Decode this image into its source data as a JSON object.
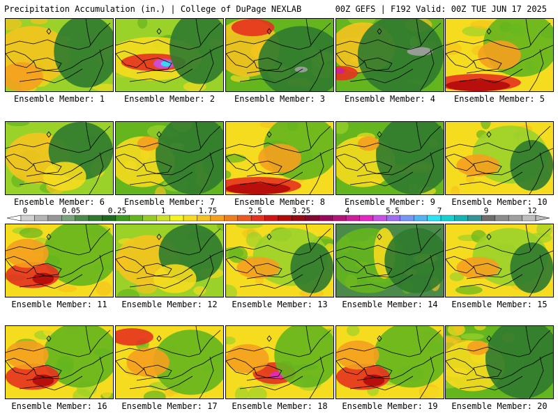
{
  "header": {
    "title": "Precipitation Accumulation (in.) | College of DuPage NEXLAB",
    "run_info": "00Z GEFS | F192 Valid: 00Z TUE JUN 17 2025"
  },
  "legend": {
    "tick_labels": [
      "0",
      "0.05",
      "0.25",
      "1",
      "1.75",
      "2.5",
      "3.25",
      "4",
      "5.5",
      "7",
      "9",
      "12"
    ],
    "colors": [
      "#cfcfcf",
      "#b4b4b4",
      "#979797",
      "#7aa47a",
      "#4c8a4c",
      "#2f7a2f",
      "#1f6b1f",
      "#3c9a1e",
      "#64b51e",
      "#96cc24",
      "#cde128",
      "#f5f51e",
      "#f5dc1e",
      "#f5c31e",
      "#f5a01e",
      "#f07d1e",
      "#eb5a1e",
      "#e6321e",
      "#d21414",
      "#b40a0a",
      "#960a14",
      "#820a32",
      "#9b0a5a",
      "#b41478",
      "#cd1e9b",
      "#e628c3",
      "#c850e6",
      "#a06ef0",
      "#7896f5",
      "#50b4f5",
      "#28e6f5",
      "#14d2d2",
      "#14b4b4",
      "#329696",
      "#6e6e6e",
      "#8c8c8c",
      "#a0a0a0",
      "#bebebe"
    ]
  },
  "panels": [
    {
      "caption": "Ensemble Member: 1",
      "scheme": "dry_west"
    },
    {
      "caption": "Ensemble Member: 2",
      "scheme": "magenta_band"
    },
    {
      "caption": "Ensemble Member: 3",
      "scheme": "wet_east_red_north"
    },
    {
      "caption": "Ensemble Member: 4",
      "scheme": "wet_east_magenta"
    },
    {
      "caption": "Ensemble Member: 5",
      "scheme": "red_south"
    },
    {
      "caption": "Ensemble Member: 6",
      "scheme": "mixed"
    },
    {
      "caption": "Ensemble Member: 7",
      "scheme": "wet_east"
    },
    {
      "caption": "Ensemble Member: 8",
      "scheme": "red_south"
    },
    {
      "caption": "Ensemble Member: 9",
      "scheme": "wet_east"
    },
    {
      "caption": "Ensemble Member: 10",
      "scheme": "dry_mixed"
    },
    {
      "caption": "Ensemble Member: 11",
      "scheme": "red_west"
    },
    {
      "caption": "Ensemble Member: 12",
      "scheme": "mixed"
    },
    {
      "caption": "Ensemble Member: 13",
      "scheme": "dry_mixed"
    },
    {
      "caption": "Ensemble Member: 14",
      "scheme": "wet_all"
    },
    {
      "caption": "Ensemble Member: 15",
      "scheme": "dry_mixed"
    },
    {
      "caption": "Ensemble Member: 16",
      "scheme": "red_west"
    },
    {
      "caption": "Ensemble Member: 17",
      "scheme": "red_northwest"
    },
    {
      "caption": "Ensemble Member: 18",
      "scheme": "magenta_center"
    },
    {
      "caption": "Ensemble Member: 19",
      "scheme": "red_west"
    },
    {
      "caption": "Ensemble Member: 20",
      "scheme": "wet_east"
    }
  ]
}
